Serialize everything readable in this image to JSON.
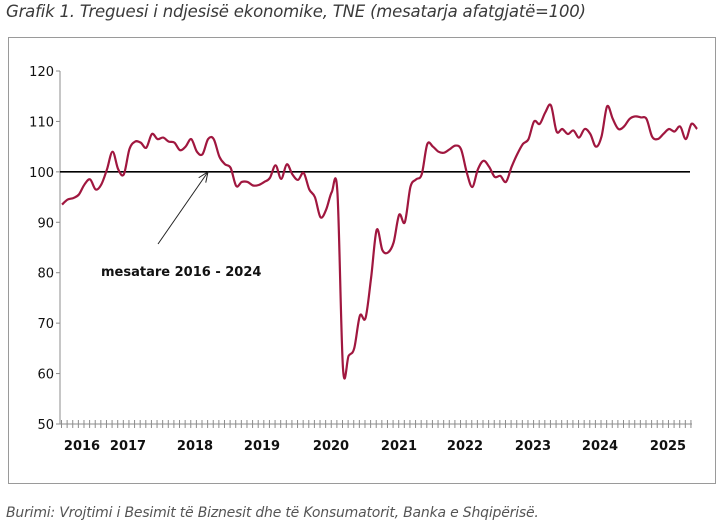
{
  "title": "Grafik 1. Treguesi i ndjesisë ekonomike, TNE (mesatarja afatgjatë=100)",
  "source": "Burimi: Vrojtimi i Besimit të Biznesit dhe të Konsumatorit, Banka e Shqipërisë.",
  "chart_data": {
    "type": "line",
    "title": "Treguesi i ndjesisë ekonomike, TNE (mesatarja afatgjatë=100)",
    "xlabel": "",
    "ylabel": "",
    "ylim": [
      50,
      120
    ],
    "yticks": [
      50,
      60,
      70,
      80,
      90,
      100,
      110,
      120
    ],
    "xtick_labels": [
      "2016",
      "2017",
      "2018",
      "2019",
      "2020",
      "2021",
      "2022",
      "2023",
      "2024",
      "2025"
    ],
    "x_start": "2016-01",
    "frequency": "monthly",
    "grid": false,
    "legend": "none",
    "reference_line": {
      "value": 100,
      "label": "mesatare 2016 - 2024"
    },
    "annotation": "mesatare 2016 - 2024",
    "colors": {
      "series": "#a0173f",
      "reference": "#000000",
      "axis": "#8c8c8c"
    },
    "series": [
      {
        "name": "TNE",
        "values": [
          93.5,
          94.5,
          94.8,
          95.5,
          97.5,
          98.5,
          96.5,
          97.5,
          100.5,
          104.0,
          100.5,
          99.5,
          104.5,
          106.0,
          105.8,
          104.8,
          107.5,
          106.5,
          106.8,
          106.0,
          105.8,
          104.3,
          105.0,
          106.5,
          104.0,
          103.5,
          106.5,
          106.5,
          103.0,
          101.5,
          100.8,
          97.2,
          98.0,
          98.0,
          97.3,
          97.4,
          98.0,
          98.8,
          101.3,
          98.6,
          101.5,
          99.5,
          98.4,
          99.8,
          96.5,
          95.0,
          91.0,
          92.5,
          96.0,
          96.0,
          61.0,
          63.5,
          65.0,
          71.5,
          71.0,
          79.0,
          88.5,
          84.5,
          84.0,
          86.0,
          91.5,
          90.0,
          97.0,
          98.5,
          99.5,
          105.5,
          105.0,
          104.0,
          103.8,
          104.5,
          105.2,
          104.5,
          100.0,
          97.0,
          100.5,
          102.2,
          101.0,
          99.0,
          99.2,
          98.0,
          101.0,
          103.5,
          105.5,
          106.5,
          110.0,
          109.5,
          111.8,
          113.2,
          108.0,
          108.5,
          107.5,
          108.2,
          106.8,
          108.5,
          107.5,
          105.0,
          107.0,
          113.0,
          110.5,
          108.5,
          109.0,
          110.5,
          111.0,
          110.8,
          110.5,
          107.0,
          106.5,
          107.5,
          108.5,
          108.0,
          109.0,
          106.5,
          109.5,
          108.5
        ]
      }
    ]
  }
}
